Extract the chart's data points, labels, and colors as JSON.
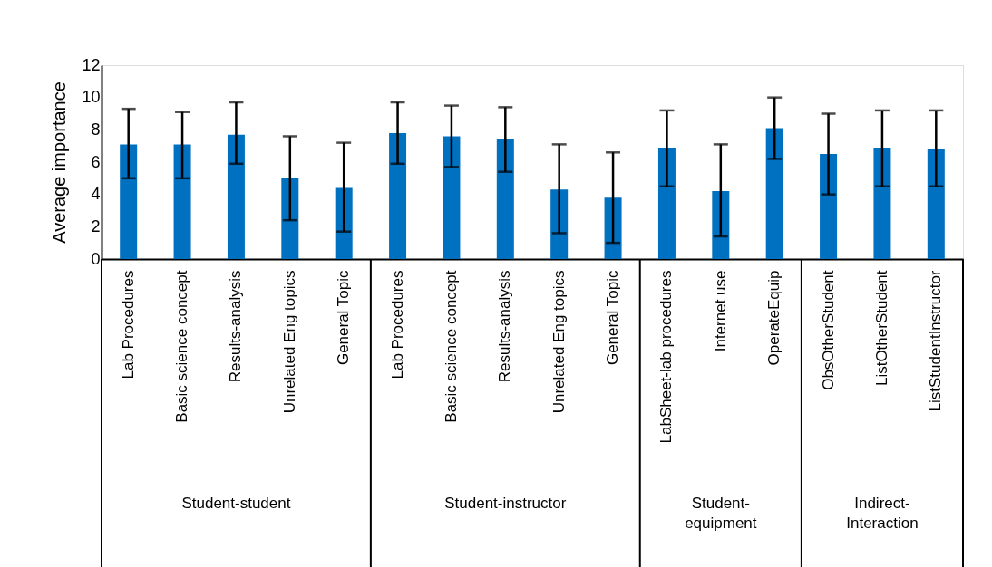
{
  "chart_data": {
    "type": "bar",
    "ylabel": "Average importance",
    "categories": [
      "Lab Procedures",
      "Basic science concept",
      "Results-analysis",
      "Unrelated Eng topics",
      "General Topic",
      "Lab Procedures",
      "Basic science concept",
      "Results-analysis",
      "Unrelated Eng topics",
      "General Topic",
      "LabSheet-lab procedures",
      "Internet use",
      "OperateEquip",
      "ObsOtherStudent",
      "ListOtherStudent",
      "ListStudentInstructor"
    ],
    "series": [
      {
        "color": "#0070c0",
        "values": [
          7.1,
          7.1,
          7.7,
          5.0,
          4.4,
          7.8,
          7.6,
          7.4,
          4.3,
          3.8,
          6.9,
          4.2,
          8.1,
          6.5,
          6.9,
          6.8
        ],
        "errors": [
          [
            5.0,
            9.3
          ],
          [
            5.0,
            9.1
          ],
          [
            5.9,
            9.7
          ],
          [
            2.4,
            7.6
          ],
          [
            1.7,
            7.2
          ],
          [
            5.9,
            9.7
          ],
          [
            5.7,
            9.5
          ],
          [
            5.4,
            9.4
          ],
          [
            1.6,
            7.1
          ],
          [
            1.0,
            6.6
          ],
          [
            4.5,
            9.2
          ],
          [
            1.4,
            7.1
          ],
          [
            6.2,
            10.0
          ],
          [
            4.0,
            9.0
          ],
          [
            4.5,
            9.2
          ],
          [
            4.5,
            9.2
          ]
        ]
      }
    ],
    "ylim": [
      0,
      12
    ],
    "yticks": [
      0,
      2,
      4,
      6,
      8,
      10,
      12
    ],
    "grid": false,
    "annotations": [
      "Student-student",
      "Student-instructor",
      "Student-equipment",
      "Indirect-Interaction"
    ]
  }
}
